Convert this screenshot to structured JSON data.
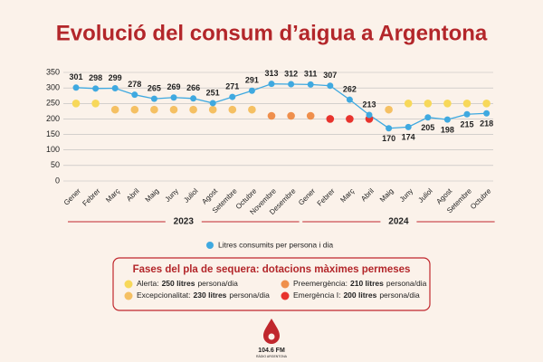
{
  "chart_data": {
    "type": "line",
    "title": "Evolució del consum d’aigua a Argentona",
    "categories": [
      "Gener",
      "Febrer",
      "Març",
      "Abril",
      "Maig",
      "Juny",
      "Juliol",
      "Agost",
      "Setembre",
      "Octubre",
      "Novembre",
      "Desembre",
      "Gener",
      "Febrer",
      "Març",
      "Abril",
      "Maig",
      "Juny",
      "Juliol",
      "Agost",
      "Setembre",
      "Octubre"
    ],
    "years": [
      {
        "label": "2023",
        "from": 0,
        "to": 11
      },
      {
        "label": "2024",
        "from": 12,
        "to": 21
      }
    ],
    "series": [
      {
        "name": "Litres consumits per persona i dia",
        "color": "#3fa9e0",
        "values": [
          301,
          298,
          299,
          278,
          265,
          269,
          266,
          251,
          271,
          291,
          313,
          312,
          311,
          307,
          262,
          213,
          170,
          174,
          205,
          198,
          215,
          218
        ]
      },
      {
        "colors": [
          "#f7d85a",
          "#f7d85a",
          "#f5c063",
          "#f5c063",
          "#f5c063",
          "#f5c063",
          "#f5c063",
          "#f5c063",
          "#f5c063",
          "#f5c063",
          "#ef8f4c",
          "#ef8f4c",
          "#ef8f4c",
          "#e8332d",
          "#e8332d",
          "#e8332d",
          "#f5c063",
          "#f7d85a",
          "#f7d85a",
          "#f7d85a",
          "#f7d85a",
          "#f7d85a"
        ],
        "values": [
          250,
          250,
          230,
          230,
          230,
          230,
          230,
          230,
          230,
          230,
          210,
          210,
          210,
          200,
          200,
          200,
          230,
          250,
          250,
          250,
          250,
          250
        ]
      }
    ],
    "ylim": [
      0,
      350
    ],
    "yticks": [
      0,
      50,
      100,
      150,
      200,
      250,
      300,
      350
    ],
    "grid": true,
    "phases_title": "Fases del pla de sequera: dotacions màximes permeses",
    "phases": [
      {
        "name": "Alerta:",
        "amount": "250 litres",
        "unit": "persona/dia",
        "color": "#f7d85a"
      },
      {
        "name": "Excepcionalitat:",
        "amount": "230 litres",
        "unit": "persona/dia",
        "color": "#f5c063"
      },
      {
        "name": "Preemergència:",
        "amount": "210 litres",
        "unit": "persona/dia",
        "color": "#ef8f4c"
      },
      {
        "name": "Emergència I:",
        "amount": "200 litres",
        "unit": "persona/dia",
        "color": "#e8332d"
      }
    ],
    "logo": {
      "name": "104.6 FM",
      "tagline": "RÀDIO ARGENTONA"
    }
  }
}
